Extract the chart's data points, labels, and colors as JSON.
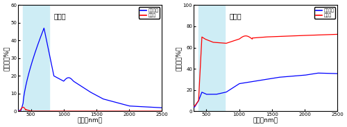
{
  "left": {
    "title": "可視光",
    "ylabel": "透過率（%）",
    "xlabel": "波長（nm）",
    "ylim": [
      0,
      60
    ],
    "yticks": [
      0,
      10,
      20,
      30,
      40,
      50,
      60
    ],
    "xlim": [
      300,
      2500
    ],
    "xticks": [
      500,
      1000,
      1500,
      2000,
      2500
    ],
    "visible_light_range": [
      380,
      780
    ],
    "legend_labels": [
      "透明状態",
      "鏡状態"
    ],
    "line_colors": [
      "#0000ff",
      "#ff0000"
    ]
  },
  "right": {
    "title": "可視光",
    "ylabel": "反射率（%）",
    "xlabel": "波長（nm）",
    "ylim": [
      0,
      100
    ],
    "yticks": [
      0,
      20,
      40,
      60,
      80,
      100
    ],
    "xlim": [
      300,
      2500
    ],
    "xticks": [
      500,
      1000,
      1500,
      2000,
      2500
    ],
    "visible_light_range": [
      380,
      780
    ],
    "legend_labels": [
      "透明状態",
      "鏡状態"
    ],
    "line_colors": [
      "#0000ff",
      "#ff0000"
    ]
  },
  "background_color": "#ffffff",
  "visible_light_color": "#ceedf5"
}
